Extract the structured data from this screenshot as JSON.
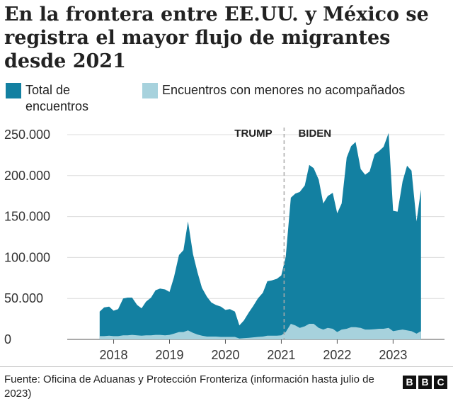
{
  "title": "En la frontera entre EE.UU. y México se registra el mayor flujo de migrantes desde 2021",
  "legend": [
    {
      "label": "Total de encuentros",
      "color": "#1380a1"
    },
    {
      "label": "Encuentros con menores no acompañados",
      "color": "#a7d2dd"
    }
  ],
  "footer": {
    "source": "Fuente: Oficina de Aduanas y Protección Fronteriza (información hasta julio de 2023)",
    "logo": [
      "B",
      "B",
      "C"
    ]
  },
  "chart_data": {
    "type": "area",
    "xlabel": "",
    "ylabel": "",
    "ylim": [
      0,
      250000
    ],
    "yticks": [
      0,
      50000,
      100000,
      150000,
      200000,
      250000
    ],
    "ytick_labels": [
      "0",
      "50.000",
      "100.000",
      "150.000",
      "200.000",
      "250.000"
    ],
    "xticks": [
      2018,
      2019,
      2020,
      2021,
      2022,
      2023
    ],
    "xlim": [
      2017.17,
      2023.92
    ],
    "grid": "horizontal",
    "annotations": [
      {
        "label": "TRUMP",
        "x": 2020.5
      },
      {
        "label": "BIDEN",
        "x": 2021.6
      }
    ],
    "divider_x": 2021.05,
    "series": [
      {
        "name": "Total de encuentros",
        "color": "#1380a1",
        "x": [
          2017.75,
          2017.83,
          2017.92,
          2018.0,
          2018.08,
          2018.17,
          2018.25,
          2018.33,
          2018.42,
          2018.5,
          2018.58,
          2018.67,
          2018.75,
          2018.83,
          2018.92,
          2019.0,
          2019.08,
          2019.17,
          2019.25,
          2019.33,
          2019.42,
          2019.5,
          2019.58,
          2019.67,
          2019.75,
          2019.83,
          2019.92,
          2020.0,
          2020.08,
          2020.17,
          2020.25,
          2020.33,
          2020.42,
          2020.5,
          2020.58,
          2020.67,
          2020.75,
          2020.83,
          2020.92,
          2021.0,
          2021.08,
          2021.17,
          2021.25,
          2021.33,
          2021.42,
          2021.5,
          2021.58,
          2021.67,
          2021.75,
          2021.83,
          2021.92,
          2022.0,
          2022.08,
          2022.17,
          2022.25,
          2022.33,
          2022.42,
          2022.5,
          2022.58,
          2022.67,
          2022.75,
          2022.83,
          2022.92,
          2023.0,
          2023.08,
          2023.17,
          2023.25,
          2023.33,
          2023.42,
          2023.5
        ],
        "values": [
          34000,
          39000,
          40000,
          35000,
          37000,
          50000,
          51000,
          51000,
          42000,
          38000,
          46000,
          51000,
          60000,
          62000,
          61000,
          58000,
          76000,
          103000,
          109000,
          144000,
          104000,
          82000,
          63000,
          52000,
          45000,
          42000,
          40000,
          36000,
          37000,
          34000,
          17000,
          23000,
          33000,
          41000,
          50000,
          57000,
          71000,
          72000,
          74000,
          78000,
          101000,
          173000,
          178000,
          180000,
          188000,
          213000,
          209000,
          195000,
          166000,
          175000,
          179000,
          154000,
          166000,
          222000,
          236000,
          241000,
          208000,
          201000,
          205000,
          226000,
          230000,
          235000,
          252000,
          157000,
          156000,
          193000,
          212000,
          206000,
          144000,
          183000
        ]
      },
      {
        "name": "Encuentros con menores no acompañados",
        "color": "#a7d2dd",
        "x": [
          2017.75,
          2017.83,
          2017.92,
          2018.0,
          2018.08,
          2018.17,
          2018.25,
          2018.33,
          2018.42,
          2018.5,
          2018.58,
          2018.67,
          2018.75,
          2018.83,
          2018.92,
          2019.0,
          2019.08,
          2019.17,
          2019.25,
          2019.33,
          2019.42,
          2019.5,
          2019.58,
          2019.67,
          2019.75,
          2019.83,
          2019.92,
          2020.0,
          2020.08,
          2020.17,
          2020.25,
          2020.33,
          2020.42,
          2020.5,
          2020.58,
          2020.67,
          2020.75,
          2020.83,
          2020.92,
          2021.0,
          2021.08,
          2021.17,
          2021.25,
          2021.33,
          2021.42,
          2021.5,
          2021.58,
          2021.67,
          2021.75,
          2021.83,
          2021.92,
          2022.0,
          2022.08,
          2022.17,
          2022.25,
          2022.33,
          2022.42,
          2022.5,
          2022.58,
          2022.67,
          2022.75,
          2022.83,
          2022.92,
          2023.0,
          2023.08,
          2023.17,
          2023.25,
          2023.33,
          2023.42,
          2023.5
        ],
        "values": [
          4000,
          4000,
          4500,
          4000,
          4000,
          5000,
          5000,
          5500,
          5000,
          4500,
          5000,
          5000,
          5500,
          5500,
          5000,
          5500,
          7000,
          9000,
          9000,
          11000,
          8000,
          6000,
          4500,
          3500,
          3500,
          3500,
          3000,
          3000,
          3000,
          3000,
          1000,
          1500,
          2000,
          2500,
          3000,
          3500,
          4500,
          4500,
          4500,
          5000,
          9000,
          19000,
          17000,
          14000,
          16000,
          19000,
          19000,
          14000,
          12000,
          14000,
          13000,
          9000,
          12000,
          13000,
          15000,
          15000,
          14000,
          12000,
          12000,
          12500,
          13000,
          13000,
          14000,
          10000,
          11000,
          12000,
          11000,
          10000,
          7000,
          10000
        ]
      }
    ]
  }
}
